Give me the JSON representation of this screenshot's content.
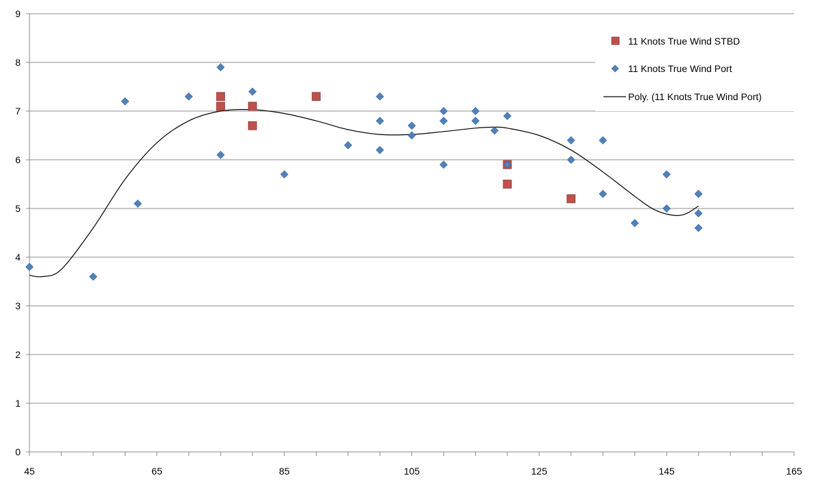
{
  "chart_data": {
    "type": "scatter",
    "title": "",
    "xlabel": "",
    "ylabel": "",
    "xlim": [
      45,
      165
    ],
    "ylim": [
      0,
      9
    ],
    "x_ticks": [
      45,
      65,
      85,
      105,
      125,
      145,
      165
    ],
    "y_ticks": [
      0,
      1,
      2,
      3,
      4,
      5,
      6,
      7,
      8,
      9
    ],
    "grid": "horizontal",
    "legend_position": "top-right",
    "series": [
      {
        "name": "11 Knots True Wind STBD",
        "marker": "square",
        "color": "#C0504D",
        "points": [
          [
            75,
            7.3
          ],
          [
            75,
            7.1
          ],
          [
            80,
            7.1
          ],
          [
            80,
            6.7
          ],
          [
            90,
            7.3
          ],
          [
            120,
            5.9
          ],
          [
            120,
            5.5
          ],
          [
            130,
            5.2
          ]
        ]
      },
      {
        "name": "11 Knots True Wind Port",
        "marker": "diamond",
        "color": "#4F81BD",
        "points": [
          [
            45,
            3.8
          ],
          [
            55,
            3.6
          ],
          [
            60,
            7.2
          ],
          [
            62,
            5.1
          ],
          [
            70,
            7.3
          ],
          [
            75,
            7.9
          ],
          [
            75,
            6.1
          ],
          [
            80,
            7.4
          ],
          [
            85,
            5.7
          ],
          [
            95,
            6.3
          ],
          [
            100,
            7.3
          ],
          [
            100,
            6.8
          ],
          [
            100,
            6.2
          ],
          [
            105,
            6.7
          ],
          [
            105,
            6.5
          ],
          [
            110,
            7.0
          ],
          [
            110,
            6.8
          ],
          [
            110,
            5.9
          ],
          [
            115,
            7.0
          ],
          [
            115,
            6.8
          ],
          [
            118,
            6.6
          ],
          [
            120,
            6.9
          ],
          [
            120,
            5.9
          ],
          [
            130,
            6.4
          ],
          [
            130,
            6.0
          ],
          [
            135,
            6.4
          ],
          [
            135,
            5.3
          ],
          [
            140,
            4.7
          ],
          [
            145,
            5.7
          ],
          [
            145,
            5.0
          ],
          [
            150,
            5.3
          ],
          [
            150,
            4.9
          ],
          [
            150,
            4.6
          ]
        ]
      },
      {
        "name": "Poly. (11 Knots True Wind Port)",
        "marker": "line",
        "color": "#000000",
        "points": [
          [
            45,
            3.63
          ],
          [
            47,
            3.6
          ],
          [
            50,
            3.75
          ],
          [
            55,
            4.6
          ],
          [
            60,
            5.6
          ],
          [
            65,
            6.35
          ],
          [
            70,
            6.8
          ],
          [
            75,
            7.0
          ],
          [
            80,
            7.03
          ],
          [
            85,
            6.95
          ],
          [
            90,
            6.8
          ],
          [
            95,
            6.62
          ],
          [
            100,
            6.52
          ],
          [
            105,
            6.52
          ],
          [
            110,
            6.58
          ],
          [
            115,
            6.65
          ],
          [
            118,
            6.67
          ],
          [
            120,
            6.65
          ],
          [
            125,
            6.5
          ],
          [
            130,
            6.2
          ],
          [
            135,
            5.75
          ],
          [
            140,
            5.25
          ],
          [
            143,
            4.98
          ],
          [
            146,
            4.86
          ],
          [
            148,
            4.89
          ],
          [
            150,
            5.05
          ]
        ]
      }
    ]
  }
}
